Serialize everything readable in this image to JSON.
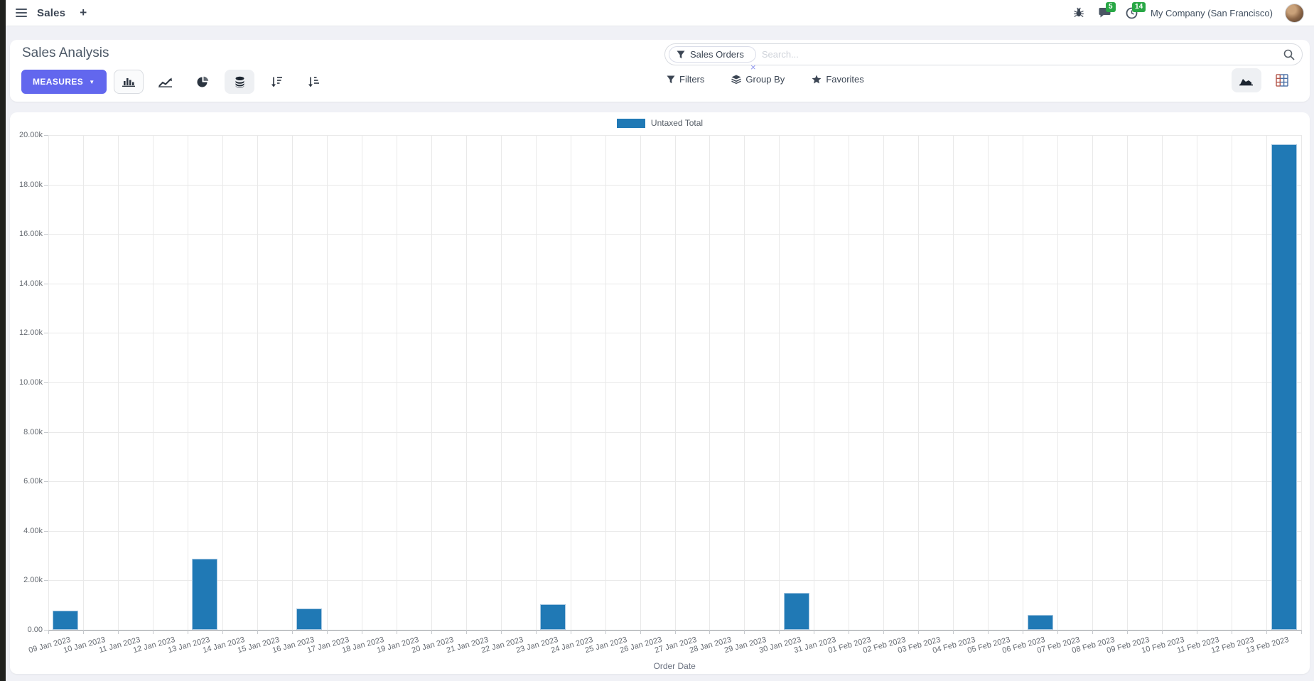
{
  "navbar": {
    "app_title": "Sales",
    "plus_label": "+",
    "message_badge": "5",
    "activity_badge": "14",
    "company": "My Company (San Francisco)"
  },
  "control_panel": {
    "title": "Sales Analysis",
    "measures_label": "MEASURES",
    "measures_caret": "▼",
    "search": {
      "facet_label": "Sales Orders",
      "facet_remove_label": "×",
      "placeholder": "Search..."
    },
    "buttons": [
      {
        "label": "Filters"
      },
      {
        "label": "Group By"
      },
      {
        "label": "Favorites"
      }
    ]
  },
  "icons": {
    "nav": [
      "hamburger-icon",
      "plus-icon",
      "bug-icon",
      "chat-icon",
      "clock-icon"
    ],
    "chart_types": [
      "bar-chart-icon",
      "line-chart-icon",
      "pie-chart-icon",
      "stacked-icon",
      "sort-desc-icon",
      "sort-asc-icon"
    ],
    "search": [
      "filter-funnel-icon",
      "magnifier-icon"
    ],
    "filter_row": [
      "filter-funnel-icon",
      "layers-icon",
      "star-icon"
    ],
    "view_switch": [
      "area-graph-icon",
      "pivot-grid-icon"
    ]
  },
  "colors": {
    "accent": "#6267ee",
    "bar": "#2079b5",
    "badge_green": "#28a745",
    "card_bg": "#ffffff",
    "page_bg": "#f0f1f6"
  },
  "chart_data": {
    "type": "bar",
    "title": "",
    "xlabel": "Order Date",
    "ylabel": "",
    "legend": [
      "Untaxed Total"
    ],
    "legend_position": "top",
    "grid": true,
    "ylim": [
      0,
      20000
    ],
    "y_ticks": [
      "0.00",
      "2.00k",
      "4.00k",
      "6.00k",
      "8.00k",
      "10.00k",
      "12.00k",
      "14.00k",
      "16.00k",
      "18.00k",
      "20.00k"
    ],
    "categories": [
      "09 Jan 2023",
      "10 Jan 2023",
      "11 Jan 2023",
      "12 Jan 2023",
      "13 Jan 2023",
      "14 Jan 2023",
      "15 Jan 2023",
      "16 Jan 2023",
      "17 Jan 2023",
      "18 Jan 2023",
      "19 Jan 2023",
      "20 Jan 2023",
      "21 Jan 2023",
      "22 Jan 2023",
      "23 Jan 2023",
      "24 Jan 2023",
      "25 Jan 2023",
      "26 Jan 2023",
      "27 Jan 2023",
      "28 Jan 2023",
      "29 Jan 2023",
      "30 Jan 2023",
      "31 Jan 2023",
      "01 Feb 2023",
      "02 Feb 2023",
      "03 Feb 2023",
      "04 Feb 2023",
      "05 Feb 2023",
      "06 Feb 2023",
      "07 Feb 2023",
      "08 Feb 2023",
      "09 Feb 2023",
      "10 Feb 2023",
      "11 Feb 2023",
      "12 Feb 2023",
      "13 Feb 2023"
    ],
    "series": [
      {
        "name": "Untaxed Total",
        "values": [
          780,
          0,
          0,
          0,
          2880,
          0,
          0,
          860,
          0,
          0,
          0,
          0,
          0,
          0,
          1040,
          0,
          0,
          0,
          0,
          0,
          0,
          1500,
          0,
          0,
          0,
          0,
          0,
          0,
          600,
          0,
          0,
          0,
          0,
          0,
          0,
          19620
        ]
      }
    ]
  }
}
